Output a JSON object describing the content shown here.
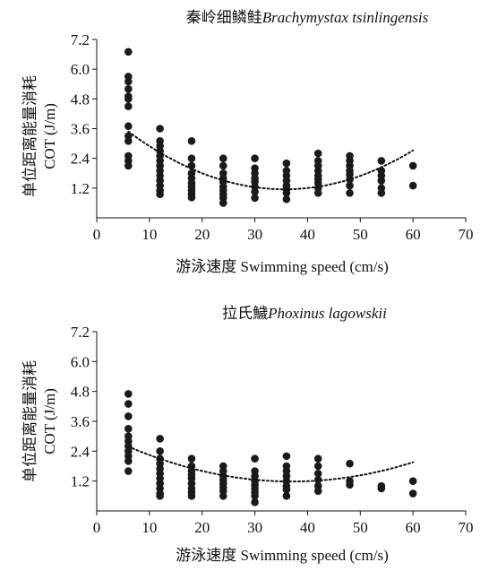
{
  "chart_data": [
    {
      "type": "scatter",
      "title": "秦岭细鳞鲑",
      "title_italic": "Brachymystax tsinlingensis",
      "xlabel": "游泳速度 Swimming speed (cm/s)",
      "ylabel_line1": "单位距离能量消耗",
      "ylabel_line2": "COT (J/m)",
      "xlim": [
        0,
        70
      ],
      "ylim": [
        0,
        7.2
      ],
      "xticks": [
        "0",
        "10",
        "20",
        "30",
        "40",
        "50",
        "60",
        "70"
      ],
      "yticks": [
        "1.2",
        "2.4",
        "3.6",
        "4.8",
        "6.0",
        "7.2"
      ],
      "grid": false,
      "trendline": {
        "style": "dotted",
        "fit": "quadratic",
        "coefficients": [
          4.52,
          -0.189,
          0.00265
        ],
        "x_range": [
          6,
          60
        ]
      },
      "series": [
        {
          "points": [
            [
              6,
              6.7
            ],
            [
              6,
              5.7
            ],
            [
              6,
              5.5
            ],
            [
              6,
              5.2
            ],
            [
              6,
              4.9
            ],
            [
              6,
              4.8
            ],
            [
              6,
              4.5
            ],
            [
              6,
              3.7
            ],
            [
              6,
              3.3
            ],
            [
              6,
              3.1
            ],
            [
              6,
              2.5
            ],
            [
              6,
              2.3
            ],
            [
              6,
              2.1
            ],
            [
              12,
              3.6
            ],
            [
              12,
              3.1
            ],
            [
              12,
              2.9
            ],
            [
              12,
              2.7
            ],
            [
              12,
              2.5
            ],
            [
              12,
              2.3
            ],
            [
              12,
              2.1
            ],
            [
              12,
              1.9
            ],
            [
              12,
              1.7
            ],
            [
              12,
              1.5
            ],
            [
              12,
              1.3
            ],
            [
              12,
              1.1
            ],
            [
              12,
              0.95
            ],
            [
              18,
              3.1
            ],
            [
              18,
              2.4
            ],
            [
              18,
              2.1
            ],
            [
              18,
              1.8
            ],
            [
              18,
              1.6
            ],
            [
              18,
              1.4
            ],
            [
              18,
              1.25
            ],
            [
              18,
              1.1
            ],
            [
              18,
              0.95
            ],
            [
              18,
              0.82
            ],
            [
              24,
              2.4
            ],
            [
              24,
              2.1
            ],
            [
              24,
              1.8
            ],
            [
              24,
              1.6
            ],
            [
              24,
              1.45
            ],
            [
              24,
              1.25
            ],
            [
              24,
              1.1
            ],
            [
              24,
              0.95
            ],
            [
              24,
              0.8
            ],
            [
              24,
              0.6
            ],
            [
              30,
              2.4
            ],
            [
              30,
              2.0
            ],
            [
              30,
              1.8
            ],
            [
              30,
              1.6
            ],
            [
              30,
              1.45
            ],
            [
              30,
              1.25
            ],
            [
              30,
              1.05
            ],
            [
              30,
              0.8
            ],
            [
              36,
              2.2
            ],
            [
              36,
              1.9
            ],
            [
              36,
              1.7
            ],
            [
              36,
              1.5
            ],
            [
              36,
              1.3
            ],
            [
              36,
              1.15
            ],
            [
              36,
              1.0
            ],
            [
              36,
              0.75
            ],
            [
              42,
              2.6
            ],
            [
              42,
              2.3
            ],
            [
              42,
              2.1
            ],
            [
              42,
              1.9
            ],
            [
              42,
              1.7
            ],
            [
              42,
              1.55
            ],
            [
              42,
              1.4
            ],
            [
              42,
              1.2
            ],
            [
              42,
              1.0
            ],
            [
              48,
              2.5
            ],
            [
              48,
              2.3
            ],
            [
              48,
              2.1
            ],
            [
              48,
              1.9
            ],
            [
              48,
              1.75
            ],
            [
              48,
              1.55
            ],
            [
              48,
              1.3
            ],
            [
              48,
              1.0
            ],
            [
              54,
              2.3
            ],
            [
              54,
              1.9
            ],
            [
              54,
              1.7
            ],
            [
              54,
              1.5
            ],
            [
              54,
              1.2
            ],
            [
              54,
              1.0
            ],
            [
              60,
              2.1
            ],
            [
              60,
              1.3
            ]
          ]
        }
      ]
    },
    {
      "type": "scatter",
      "title": "拉氏鱥",
      "title_italic": "Phoxinus lagowskii",
      "xlabel": "游泳速度 Swimming speed (cm/s)",
      "ylabel_line1": "单位距离能量消耗",
      "ylabel_line2": "COT (J/m)",
      "xlim": [
        0,
        70
      ],
      "ylim": [
        0,
        7.2
      ],
      "xticks": [
        "0",
        "10",
        "20",
        "30",
        "40",
        "50",
        "60",
        "70"
      ],
      "yticks": [
        "1.2",
        "2.4",
        "3.6",
        "4.8",
        "6.0",
        "7.2"
      ],
      "grid": false,
      "trendline": {
        "style": "dotted",
        "fit": "quadratic",
        "coefficients": [
          3.18,
          -0.108,
          0.00146
        ],
        "x_range": [
          6,
          60
        ]
      },
      "series": [
        {
          "points": [
            [
              6,
              4.7
            ],
            [
              6,
              4.3
            ],
            [
              6,
              3.8
            ],
            [
              6,
              3.3
            ],
            [
              6,
              3.0
            ],
            [
              6,
              2.8
            ],
            [
              6,
              2.6
            ],
            [
              6,
              2.4
            ],
            [
              6,
              2.2
            ],
            [
              6,
              2.0
            ],
            [
              6,
              1.6
            ],
            [
              12,
              2.9
            ],
            [
              12,
              2.4
            ],
            [
              12,
              2.1
            ],
            [
              12,
              1.9
            ],
            [
              12,
              1.7
            ],
            [
              12,
              1.5
            ],
            [
              12,
              1.3
            ],
            [
              12,
              1.1
            ],
            [
              12,
              0.9
            ],
            [
              12,
              0.7
            ],
            [
              12,
              0.6
            ],
            [
              18,
              2.1
            ],
            [
              18,
              1.8
            ],
            [
              18,
              1.6
            ],
            [
              18,
              1.45
            ],
            [
              18,
              1.3
            ],
            [
              18,
              1.1
            ],
            [
              18,
              0.9
            ],
            [
              18,
              0.75
            ],
            [
              18,
              0.6
            ],
            [
              24,
              1.8
            ],
            [
              24,
              1.6
            ],
            [
              24,
              1.4
            ],
            [
              24,
              1.25
            ],
            [
              24,
              1.1
            ],
            [
              24,
              0.95
            ],
            [
              24,
              0.8
            ],
            [
              24,
              0.6
            ],
            [
              30,
              2.1
            ],
            [
              30,
              1.6
            ],
            [
              30,
              1.4
            ],
            [
              30,
              1.2
            ],
            [
              30,
              1.05
            ],
            [
              30,
              0.9
            ],
            [
              30,
              0.75
            ],
            [
              30,
              0.6
            ],
            [
              30,
              0.35
            ],
            [
              36,
              2.2
            ],
            [
              36,
              1.8
            ],
            [
              36,
              1.6
            ],
            [
              36,
              1.4
            ],
            [
              36,
              1.2
            ],
            [
              36,
              1.0
            ],
            [
              36,
              0.85
            ],
            [
              36,
              0.6
            ],
            [
              42,
              2.1
            ],
            [
              42,
              1.8
            ],
            [
              42,
              1.5
            ],
            [
              42,
              1.25
            ],
            [
              42,
              1.0
            ],
            [
              42,
              0.8
            ],
            [
              48,
              1.9
            ],
            [
              48,
              1.2
            ],
            [
              48,
              1.05
            ],
            [
              54,
              1.0
            ],
            [
              54,
              0.9
            ],
            [
              60,
              1.2
            ],
            [
              60,
              0.7
            ]
          ]
        }
      ]
    }
  ]
}
